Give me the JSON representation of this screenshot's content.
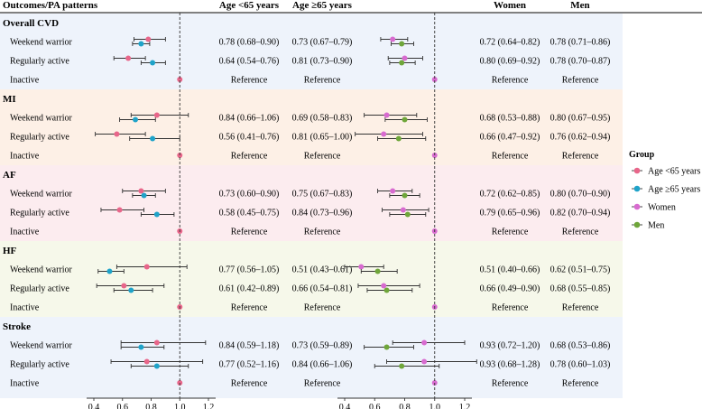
{
  "header": {
    "col_outcome": "Outcomes/PA patterns",
    "col_age_lt65": "Age <65 years",
    "col_age_ge65": "Age ≥65 years",
    "col_women": "Women",
    "col_men": "Men"
  },
  "legend": {
    "title": "Group",
    "items": [
      {
        "name": "Age <65 years",
        "color": "#e8668a"
      },
      {
        "name": "Age ≥65 years",
        "color": "#1fa3c9"
      },
      {
        "name": "Women",
        "color": "#d86bd0"
      },
      {
        "name": "Men",
        "color": "#6fa63a"
      }
    ]
  },
  "chart_data": {
    "type": "forest",
    "x_axis_left": {
      "ticks": [
        "0.4",
        "0.6",
        "0.8",
        "1.0",
        "1.2"
      ],
      "range": [
        0.4,
        1.2
      ],
      "reference_line": 1.0
    },
    "x_axis_right": {
      "ticks": [
        "0.4",
        "0.6",
        "0.8",
        "1.0",
        "1.2"
      ],
      "range": [
        0.4,
        1.2
      ],
      "reference_line": 1.0
    },
    "sections": [
      {
        "title": "Overall CVD",
        "color": "#eef3fb",
        "rows": [
          {
            "label": "Weekend warrior",
            "lt65": {
              "est": 0.78,
              "lo": 0.68,
              "hi": 0.9,
              "text": "0.78 (0.68–0.90)"
            },
            "ge65": {
              "est": 0.73,
              "lo": 0.67,
              "hi": 0.79,
              "text": "0.73 (0.67–0.79)"
            },
            "women": {
              "est": 0.72,
              "lo": 0.64,
              "hi": 0.82,
              "text": "0.72 (0.64–0.82)"
            },
            "men": {
              "est": 0.78,
              "lo": 0.71,
              "hi": 0.86,
              "text": "0.78 (0.71–0.86)"
            }
          },
          {
            "label": "Regularly active",
            "lt65": {
              "est": 0.64,
              "lo": 0.54,
              "hi": 0.76,
              "text": "0.64 (0.54–0.76)"
            },
            "ge65": {
              "est": 0.81,
              "lo": 0.73,
              "hi": 0.9,
              "text": "0.81 (0.73–0.90)"
            },
            "women": {
              "est": 0.8,
              "lo": 0.69,
              "hi": 0.92,
              "text": "0.80 (0.69–0.92)"
            },
            "men": {
              "est": 0.78,
              "lo": 0.7,
              "hi": 0.87,
              "text": "0.78 (0.70–0.87)"
            }
          },
          {
            "label": "Inactive",
            "reference": "Reference"
          }
        ]
      },
      {
        "title": "MI",
        "color": "#fdf0e6",
        "rows": [
          {
            "label": "Weekend warrior",
            "lt65": {
              "est": 0.84,
              "lo": 0.66,
              "hi": 1.06,
              "text": "0.84 (0.66–1.06)"
            },
            "ge65": {
              "est": 0.69,
              "lo": 0.58,
              "hi": 0.83,
              "text": "0.69 (0.58–0.83)"
            },
            "women": {
              "est": 0.68,
              "lo": 0.53,
              "hi": 0.88,
              "text": "0.68 (0.53–0.88)"
            },
            "men": {
              "est": 0.8,
              "lo": 0.67,
              "hi": 0.95,
              "text": "0.80 (0.67–0.95)"
            }
          },
          {
            "label": "Regularly active",
            "lt65": {
              "est": 0.56,
              "lo": 0.41,
              "hi": 0.76,
              "text": "0.56 (0.41–0.76)"
            },
            "ge65": {
              "est": 0.81,
              "lo": 0.65,
              "hi": 1.0,
              "text": "0.81 (0.65–1.00)"
            },
            "women": {
              "est": 0.66,
              "lo": 0.47,
              "hi": 0.92,
              "text": "0.66 (0.47–0.92)"
            },
            "men": {
              "est": 0.76,
              "lo": 0.62,
              "hi": 0.94,
              "text": "0.76 (0.62–0.94)"
            }
          },
          {
            "label": "Inactive",
            "reference": "Reference"
          }
        ]
      },
      {
        "title": "AF",
        "color": "#fcecef",
        "rows": [
          {
            "label": "Weekend warrior",
            "lt65": {
              "est": 0.73,
              "lo": 0.6,
              "hi": 0.9,
              "text": "0.73 (0.60–0.90)"
            },
            "ge65": {
              "est": 0.75,
              "lo": 0.67,
              "hi": 0.83,
              "text": "0.75 (0.67–0.83)"
            },
            "women": {
              "est": 0.72,
              "lo": 0.62,
              "hi": 0.85,
              "text": "0.72 (0.62–0.85)"
            },
            "men": {
              "est": 0.8,
              "lo": 0.7,
              "hi": 0.9,
              "text": "0.80 (0.70–0.90)"
            }
          },
          {
            "label": "Regularly active",
            "lt65": {
              "est": 0.58,
              "lo": 0.45,
              "hi": 0.75,
              "text": "0.58 (0.45–0.75)"
            },
            "ge65": {
              "est": 0.84,
              "lo": 0.73,
              "hi": 0.96,
              "text": "0.84 (0.73–0.96)"
            },
            "women": {
              "est": 0.79,
              "lo": 0.65,
              "hi": 0.96,
              "text": "0.79 (0.65–0.96)"
            },
            "men": {
              "est": 0.82,
              "lo": 0.7,
              "hi": 0.94,
              "text": "0.82 (0.70–0.94)"
            }
          },
          {
            "label": "Inactive",
            "reference": "Reference"
          }
        ]
      },
      {
        "title": "HF",
        "color": "#f6f8ea",
        "rows": [
          {
            "label": "Weekend warrior",
            "lt65": {
              "est": 0.77,
              "lo": 0.56,
              "hi": 1.05,
              "text": "0.77 (0.56–1.05)"
            },
            "ge65": {
              "est": 0.51,
              "lo": 0.43,
              "hi": 0.61,
              "text": "0.51 (0.43–0.61)"
            },
            "women": {
              "est": 0.51,
              "lo": 0.4,
              "hi": 0.66,
              "text": "0.51 (0.40–0.66)"
            },
            "men": {
              "est": 0.62,
              "lo": 0.51,
              "hi": 0.75,
              "text": "0.62 (0.51–0.75)"
            }
          },
          {
            "label": "Regularly active",
            "lt65": {
              "est": 0.61,
              "lo": 0.42,
              "hi": 0.89,
              "text": "0.61 (0.42–0.89)"
            },
            "ge65": {
              "est": 0.66,
              "lo": 0.54,
              "hi": 0.81,
              "text": "0.66 (0.54–0.81)"
            },
            "women": {
              "est": 0.66,
              "lo": 0.49,
              "hi": 0.9,
              "text": "0.66 (0.49–0.90)"
            },
            "men": {
              "est": 0.68,
              "lo": 0.55,
              "hi": 0.85,
              "text": "0.68 (0.55–0.85)"
            }
          },
          {
            "label": "Inactive",
            "reference": "Reference"
          }
        ]
      },
      {
        "title": "Stroke",
        "color": "#eef3fb",
        "rows": [
          {
            "label": "Weekend warrior",
            "lt65": {
              "est": 0.84,
              "lo": 0.59,
              "hi": 1.18,
              "text": "0.84 (0.59–1.18)"
            },
            "ge65": {
              "est": 0.73,
              "lo": 0.59,
              "hi": 0.89,
              "text": "0.73 (0.59–0.89)"
            },
            "women": {
              "est": 0.93,
              "lo": 0.72,
              "hi": 1.2,
              "text": "0.93 (0.72–1.20)"
            },
            "men": {
              "est": 0.68,
              "lo": 0.53,
              "hi": 0.86,
              "text": "0.68 (0.53–0.86)"
            }
          },
          {
            "label": "Regularly active",
            "lt65": {
              "est": 0.77,
              "lo": 0.52,
              "hi": 1.16,
              "text": "0.77 (0.52–1.16)"
            },
            "ge65": {
              "est": 0.84,
              "lo": 0.66,
              "hi": 1.06,
              "text": "0.84 (0.66–1.06)"
            },
            "women": {
              "est": 0.93,
              "lo": 0.68,
              "hi": 1.28,
              "text": "0.93 (0.68–1.28)"
            },
            "men": {
              "est": 0.78,
              "lo": 0.6,
              "hi": 1.03,
              "text": "0.78 (0.60–1.03)"
            }
          },
          {
            "label": "Inactive",
            "reference": "Reference"
          }
        ]
      }
    ]
  }
}
